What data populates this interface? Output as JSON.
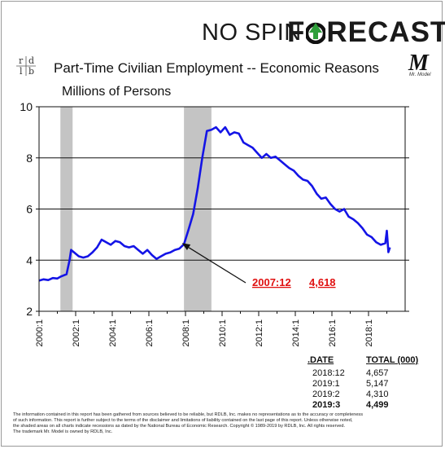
{
  "brand": {
    "prefix": "NO SPIN",
    "f_letter": "F",
    "suffix": "RECAST",
    "accent": "#2e9e3a"
  },
  "logo": {
    "r": "r",
    "d": "d",
    "l": "l",
    "b": "b"
  },
  "mr_model": {
    "mark": "M",
    "caption": "Mr. Model"
  },
  "chart_data": {
    "type": "line",
    "title": "Part-Time Civilian Employment -- Economic Reasons",
    "ylabel": "Millions of Persons",
    "ylim": [
      2,
      10
    ],
    "yticks": [
      "2",
      "4",
      "6",
      "8",
      "10"
    ],
    "xlim": [
      "2000:1",
      "2019:12"
    ],
    "xticks": [
      "2000:1",
      "2002:1",
      "2004:1",
      "2006:1",
      "2008:1",
      "2010:1",
      "2012:1",
      "2014:1",
      "2016:1",
      "2018:1"
    ],
    "grid": "horizontal",
    "line_color": "#1414e6",
    "recessions": [
      {
        "start": "2001:3",
        "end": "2001:11"
      },
      {
        "start": "2007:12",
        "end": "2009:6"
      }
    ],
    "series": [
      {
        "x": [
          "2000:1",
          "2000:4",
          "2000:7",
          "2000:10",
          "2001:1",
          "2001:3",
          "2001:5",
          "2001:7",
          "2001:9",
          "2001:10",
          "2001:12",
          "2002:3",
          "2002:6",
          "2002:9",
          "2002:12",
          "2003:3",
          "2003:6",
          "2003:9",
          "2003:12",
          "2004:3",
          "2004:6",
          "2004:9",
          "2004:12",
          "2005:3",
          "2005:6",
          "2005:9",
          "2005:12",
          "2006:3",
          "2006:6",
          "2006:9",
          "2006:12",
          "2007:3",
          "2007:6",
          "2007:9",
          "2007:12",
          "2008:3",
          "2008:6",
          "2008:9",
          "2008:12",
          "2009:3",
          "2009:6",
          "2009:9",
          "2009:12",
          "2010:3",
          "2010:6",
          "2010:9",
          "2010:12",
          "2011:3",
          "2011:6",
          "2011:9",
          "2011:12",
          "2012:3",
          "2012:6",
          "2012:9",
          "2012:12",
          "2013:3",
          "2013:6",
          "2013:9",
          "2013:12",
          "2014:3",
          "2014:6",
          "2014:9",
          "2014:12",
          "2015:3",
          "2015:6",
          "2015:9",
          "2015:12",
          "2016:3",
          "2016:6",
          "2016:9",
          "2016:12",
          "2017:3",
          "2017:6",
          "2017:9",
          "2017:12",
          "2018:3",
          "2018:6",
          "2018:9",
          "2018:12",
          "2019:1",
          "2019:2",
          "2019:3"
        ],
        "values": [
          3.2,
          3.25,
          3.22,
          3.3,
          3.28,
          3.35,
          3.4,
          3.45,
          4.0,
          4.4,
          4.3,
          4.15,
          4.1,
          4.15,
          4.3,
          4.5,
          4.8,
          4.7,
          4.6,
          4.75,
          4.7,
          4.55,
          4.5,
          4.55,
          4.4,
          4.25,
          4.4,
          4.2,
          4.05,
          4.15,
          4.25,
          4.3,
          4.4,
          4.45,
          4.62,
          5.2,
          5.8,
          6.8,
          8.0,
          9.05,
          9.1,
          9.2,
          9.0,
          9.2,
          8.9,
          9.0,
          8.95,
          8.6,
          8.5,
          8.4,
          8.2,
          8.0,
          8.15,
          8.0,
          8.05,
          7.9,
          7.75,
          7.6,
          7.5,
          7.3,
          7.15,
          7.1,
          6.9,
          6.6,
          6.4,
          6.45,
          6.2,
          6.0,
          5.9,
          6.0,
          5.7,
          5.6,
          5.45,
          5.25,
          5.0,
          4.9,
          4.7,
          4.6,
          4.66,
          5.15,
          4.31,
          4.5
        ]
      }
    ],
    "annotation": {
      "date": "2007:12",
      "value": "4,618"
    },
    "table": {
      "headers": [
        ".DATE",
        "TOTAL (000)"
      ],
      "rows": [
        [
          "2018:12",
          "4,657"
        ],
        [
          "2019:1",
          "5,147"
        ],
        [
          "2019:2",
          "4,310"
        ],
        [
          "2019:3",
          "4,499"
        ]
      ]
    }
  },
  "disclaimer": [
    "The information contained in this report has been gathered from sources believed to be reliable, but RDLB, Inc. makes no representations as to the accuracy or completeness",
    "of such information. This report is further subject to the terms of the disclaimer and limitations of liability contained on the last page of this report. Unless otherwise noted,",
    "the shaded areas on all charts indicate recessions as dated by the National Bureau of Economic Research. Copyright © 1989-2019 by RDLB, Inc. All rights reserved.",
    "The trademark Mr. Model is owned by RDLB, Inc."
  ]
}
